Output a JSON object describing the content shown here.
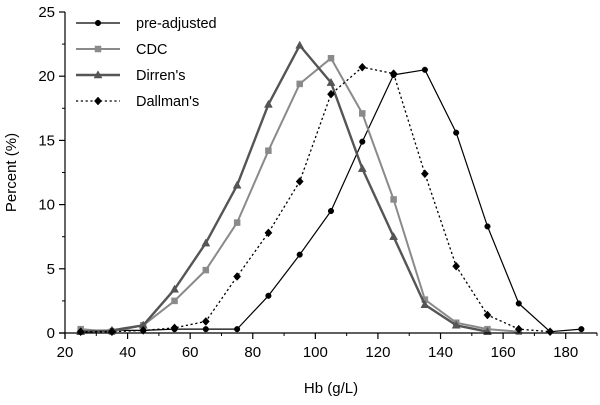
{
  "chart_data": {
    "type": "line",
    "xlabel": "Hb (g/L)",
    "ylabel": "Percent (%)",
    "xlim": [
      20,
      190
    ],
    "ylim": [
      0,
      25
    ],
    "xticks": [
      20,
      40,
      60,
      80,
      100,
      120,
      140,
      160,
      180
    ],
    "yticks": [
      0,
      5,
      10,
      15,
      20,
      25
    ],
    "x_tick_labels": [
      "20",
      "40",
      "60",
      "80",
      "100",
      "120",
      "140",
      "160",
      "180"
    ],
    "y_tick_labels": [
      "0",
      "5",
      "10",
      "15",
      "20",
      "25"
    ],
    "grid": false,
    "legend_position": "top-left",
    "series": [
      {
        "name": "pre-adjusted",
        "color": "#000000",
        "line": "solid",
        "marker": "circle",
        "x": [
          25,
          35,
          45,
          55,
          65,
          75,
          85,
          95,
          105,
          115,
          125,
          135,
          145,
          155,
          165,
          175,
          185
        ],
        "y": [
          0.2,
          0.2,
          0.2,
          0.3,
          0.3,
          0.3,
          2.9,
          6.1,
          9.5,
          14.9,
          20.1,
          20.5,
          15.6,
          8.3,
          2.3,
          0.1,
          0.3
        ]
      },
      {
        "name": "CDC",
        "color": "#8a8a8a",
        "line": "solid",
        "marker": "square",
        "x": [
          25,
          35,
          45,
          55,
          65,
          75,
          85,
          95,
          105,
          115,
          125,
          135,
          145,
          155,
          165
        ],
        "y": [
          0.3,
          0.1,
          0.6,
          2.5,
          4.9,
          8.6,
          14.2,
          19.4,
          21.4,
          17.1,
          10.4,
          2.6,
          0.8,
          0.3,
          0.1
        ]
      },
      {
        "name": "Dirren's",
        "color": "#555555",
        "line": "solid",
        "marker": "triangle",
        "x": [
          25,
          35,
          45,
          55,
          65,
          75,
          85,
          95,
          105,
          115,
          125,
          135,
          145,
          155
        ],
        "y": [
          0.1,
          0.2,
          0.6,
          3.4,
          7.0,
          11.5,
          17.8,
          22.4,
          19.5,
          12.8,
          7.5,
          2.2,
          0.6,
          0.1
        ]
      },
      {
        "name": "Dallman's",
        "color": "#000000",
        "line": "dotted",
        "marker": "diamond",
        "x": [
          25,
          35,
          45,
          55,
          65,
          75,
          85,
          95,
          105,
          115,
          125,
          135,
          145,
          155,
          165,
          175
        ],
        "y": [
          0.1,
          0.1,
          0.2,
          0.4,
          0.9,
          4.4,
          7.8,
          11.8,
          18.6,
          20.7,
          20.2,
          12.4,
          5.2,
          1.4,
          0.3,
          0.1
        ]
      }
    ]
  }
}
